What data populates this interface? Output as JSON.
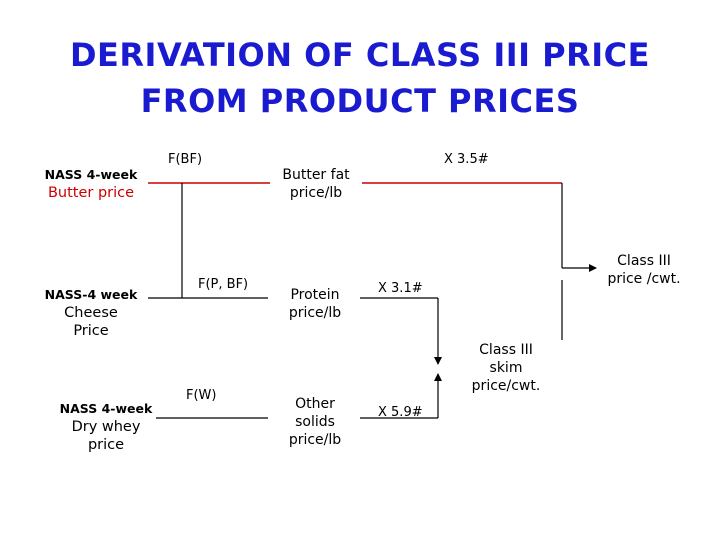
{
  "title": {
    "line1": "DERIVATION OF CLASS III PRICE",
    "line2": "FROM PRODUCT PRICES"
  },
  "inputs": {
    "butter": {
      "small": "NASS 4-week",
      "big": "Butter price"
    },
    "cheese": {
      "small": "NASS-4 week",
      "big1": "Cheese",
      "big2": "Price"
    },
    "whey": {
      "small": "NASS 4-week",
      "big1": "Dry whey",
      "big2": "price"
    }
  },
  "functions": {
    "butterfat": "F(BF)",
    "protein": "F(P, BF)",
    "other_solids": "F(W)"
  },
  "components": {
    "butterfat": {
      "line1": "Butter fat",
      "line2": "price/lb"
    },
    "protein": {
      "line1": "Protein",
      "line2": "price/lb"
    },
    "other_solids": {
      "line1": "Other",
      "line2": "solids",
      "line3": "price/lb"
    }
  },
  "multipliers": {
    "butterfat": "X 3.5#",
    "protein": "X 3.1#",
    "other_solids": "X 5.9#"
  },
  "outputs": {
    "skim": {
      "line1": "Class III",
      "line2": "skim",
      "line3": "price/cwt."
    },
    "class3": {
      "line1": "Class III",
      "line2": "price /cwt."
    }
  },
  "colors": {
    "title": "#1a1ad0",
    "butter_path": "#cc0000",
    "line": "#000000"
  }
}
